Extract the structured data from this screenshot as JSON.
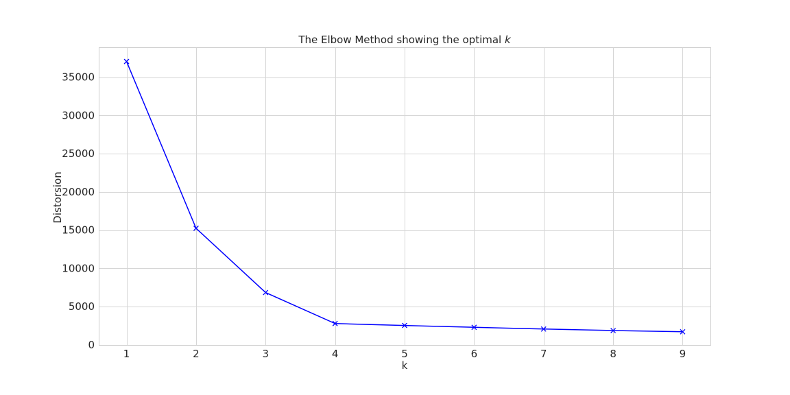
{
  "chart_data": {
    "type": "line",
    "title": "The Elbow Method showing the optimal ",
    "title_italic": "k",
    "xlabel": "k",
    "ylabel": "Distorsion",
    "x": [
      1,
      2,
      3,
      4,
      5,
      6,
      7,
      8,
      9
    ],
    "series": [
      {
        "values": [
          37050,
          15250,
          6850,
          2800,
          2550,
          2300,
          2080,
          1880,
          1720
        ],
        "color": "#0000ff",
        "marker": "x"
      }
    ],
    "xticks": [
      1,
      2,
      3,
      4,
      5,
      6,
      7,
      8,
      9
    ],
    "yticks": [
      0,
      5000,
      10000,
      15000,
      20000,
      25000,
      30000,
      35000
    ],
    "xlim": [
      0.6,
      9.4
    ],
    "ylim": [
      0,
      38900
    ],
    "grid": true,
    "legend": "none"
  }
}
